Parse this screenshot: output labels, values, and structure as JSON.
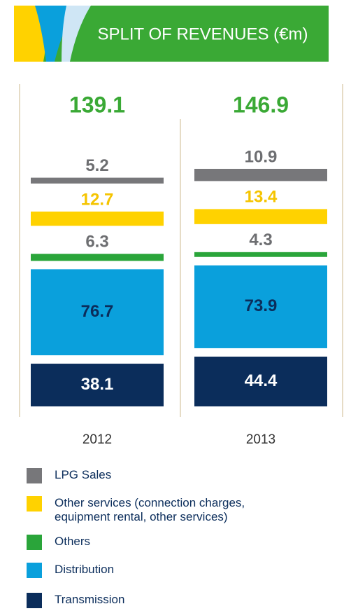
{
  "chart_data": {
    "type": "stacked_bar",
    "title": "SPLIT OF REVENUES (€m)",
    "categories": [
      "2012",
      "2013"
    ],
    "totals": [
      139.1,
      146.9
    ],
    "series": [
      {
        "name": "LPG Sales",
        "color": "#77777a",
        "label_color": "#6d6e71",
        "values": [
          5.2,
          10.9
        ]
      },
      {
        "name": "Other services (connection charges, equipment rental, other services)",
        "color": "#ffd200",
        "label_color": "#f5c400",
        "values": [
          12.7,
          13.4
        ]
      },
      {
        "name": "Others",
        "color": "#2aa53a",
        "label_color": "#6d6e71",
        "values": [
          6.3,
          4.3
        ]
      },
      {
        "name": "Distribution",
        "color": "#0aa0dc",
        "label_color": "#0b2d5b",
        "values": [
          76.7,
          73.9
        ]
      },
      {
        "name": "Transmission",
        "color": "#0b2d5b",
        "label_color": "#ffffff",
        "values": [
          38.1,
          44.4
        ]
      }
    ]
  }
}
